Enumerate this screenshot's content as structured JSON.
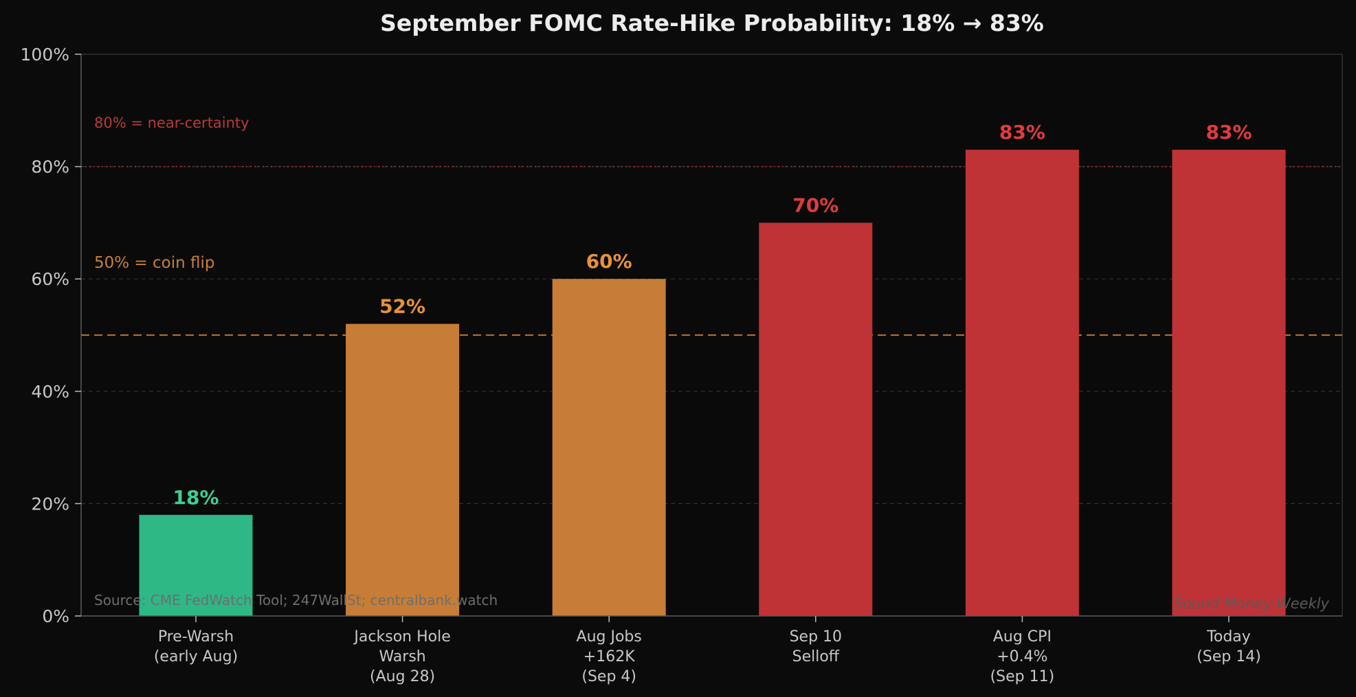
{
  "chart_data": {
    "type": "bar",
    "title": "September FOMC Rate-Hike Probability: 18% → 83%",
    "categories": [
      [
        "Pre-Warsh",
        "(early Aug)"
      ],
      [
        "Jackson Hole",
        "Warsh",
        "(Aug 28)"
      ],
      [
        "Aug Jobs",
        "+162K",
        "(Sep 4)"
      ],
      [
        "Sep 10",
        "Selloff"
      ],
      [
        "Aug CPI",
        "+0.4%",
        "(Sep 11)"
      ],
      [
        "Today",
        "(Sep 14)"
      ]
    ],
    "values": [
      18,
      52,
      60,
      70,
      83,
      83
    ],
    "value_labels": [
      "18%",
      "52%",
      "60%",
      "70%",
      "83%",
      "83%"
    ],
    "bar_colors": [
      "#2db886",
      "#c77d35",
      "#c77d35",
      "#bf3337",
      "#bf3337",
      "#bf3337"
    ],
    "label_colors": [
      "#3ecf96",
      "#e8923a",
      "#e8923a",
      "#e03c3c",
      "#e03c3c",
      "#e03c3c"
    ],
    "ylim": [
      0,
      100
    ],
    "yticks": [
      0,
      20,
      40,
      60,
      80,
      100
    ],
    "ytick_labels": [
      "0%",
      "20%",
      "40%",
      "60%",
      "80%",
      "100%"
    ],
    "grid": "horizontal dashed",
    "reference_lines": [
      {
        "value": 80,
        "label": "80% = near-certainty",
        "color": "#b93a3a",
        "style": "dotted"
      },
      {
        "value": 50,
        "label": "50% = coin flip",
        "color": "#c97f3a",
        "style": "dashed"
      }
    ],
    "source": "Source: CME FedWatch Tool; 247WallSt; centralbank.watch",
    "watermark": "Sound Money Weekly"
  }
}
